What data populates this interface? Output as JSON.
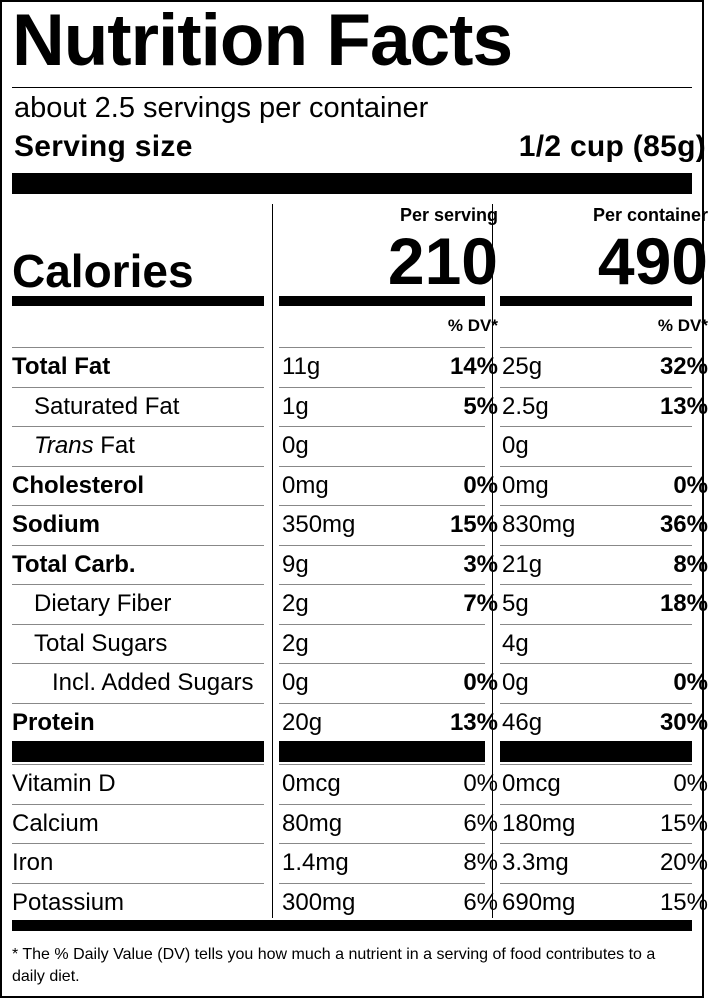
{
  "title": "Nutrition Facts",
  "servings_per_container": "about 2.5 servings per container",
  "serving_size": {
    "label": "Serving size",
    "value": "1/2 cup (85g)"
  },
  "columns": {
    "per_serving": "Per serving",
    "per_container": "Per container",
    "dv_label": "% DV*"
  },
  "calories": {
    "label": "Calories",
    "per_serving": "210",
    "per_container": "490"
  },
  "nutrients": [
    {
      "name": "Total Fat",
      "serving_amount": "11g",
      "serving_dv": "14%",
      "container_amount": "25g",
      "container_dv": "32%"
    },
    {
      "name": "Saturated Fat",
      "serving_amount": "1g",
      "serving_dv": "5%",
      "container_amount": "2.5g",
      "container_dv": "13%"
    },
    {
      "name_italic": "Trans",
      "name_rest": " Fat",
      "serving_amount": "0g",
      "serving_dv": "",
      "container_amount": "0g",
      "container_dv": ""
    },
    {
      "name": "Cholesterol",
      "serving_amount": "0mg",
      "serving_dv": "0%",
      "container_amount": "0mg",
      "container_dv": "0%"
    },
    {
      "name": "Sodium",
      "serving_amount": "350mg",
      "serving_dv": "15%",
      "container_amount": "830mg",
      "container_dv": "36%"
    },
    {
      "name": "Total Carb.",
      "serving_amount": "9g",
      "serving_dv": "3%",
      "container_amount": "21g",
      "container_dv": "8%"
    },
    {
      "name": "Dietary Fiber",
      "serving_amount": "2g",
      "serving_dv": "7%",
      "container_amount": "5g",
      "container_dv": "18%"
    },
    {
      "name": "Total Sugars",
      "serving_amount": "2g",
      "serving_dv": "",
      "container_amount": "4g",
      "container_dv": ""
    },
    {
      "name": "Incl. Added Sugars",
      "serving_amount": "0g",
      "serving_dv": "0%",
      "container_amount": "0g",
      "container_dv": "0%"
    },
    {
      "name": "Protein",
      "serving_amount": "20g",
      "serving_dv": "13%",
      "container_amount": "46g",
      "container_dv": "30%"
    }
  ],
  "vitamins": [
    {
      "name": "Vitamin D",
      "serving_amount": "0mcg",
      "serving_dv": "0%",
      "container_amount": "0mcg",
      "container_dv": "0%"
    },
    {
      "name": "Calcium",
      "serving_amount": "80mg",
      "serving_dv": "6%",
      "container_amount": "180mg",
      "container_dv": "15%"
    },
    {
      "name": "Iron",
      "serving_amount": "1.4mg",
      "serving_dv": "8%",
      "container_amount": "3.3mg",
      "container_dv": "20%"
    },
    {
      "name": "Potassium",
      "serving_amount": "300mg",
      "serving_dv": "6%",
      "container_amount": "690mg",
      "container_dv": "15%"
    }
  ],
  "footnote": "* The % Daily Value (DV) tells you how much a nutrient in a serving of food contributes to a daily diet."
}
